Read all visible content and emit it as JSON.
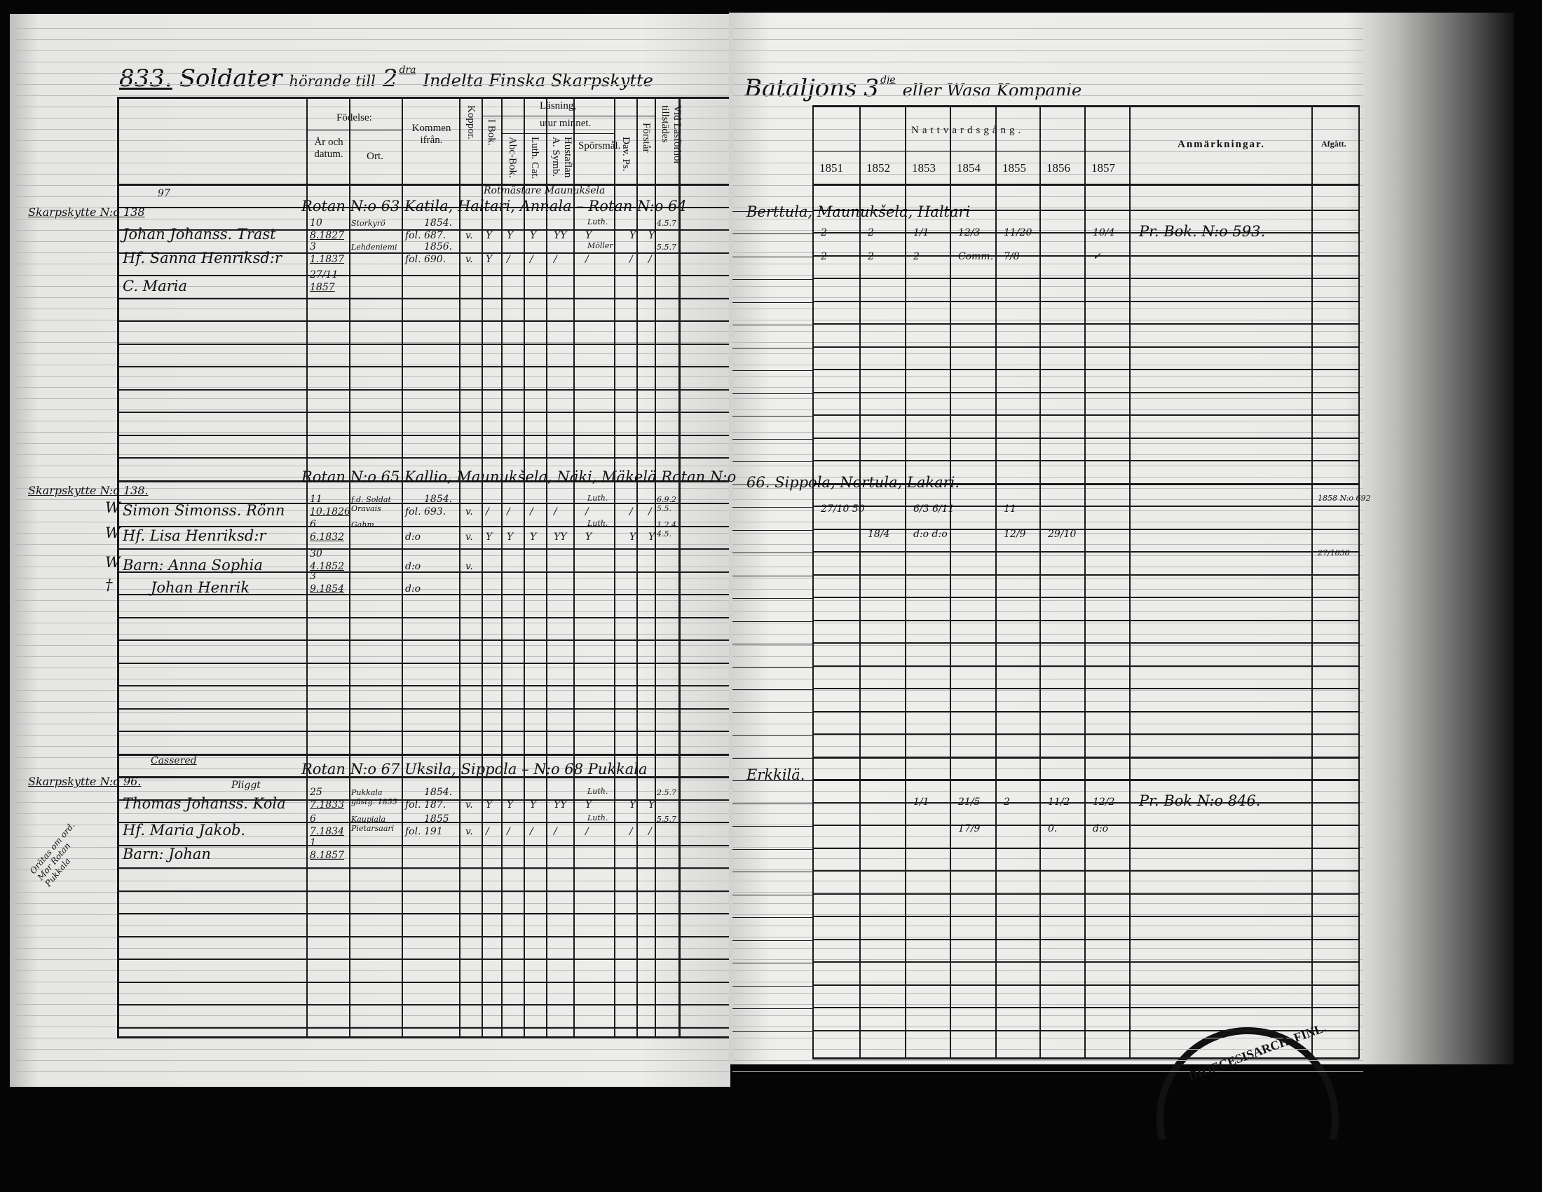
{
  "title": {
    "number": "833.",
    "text1": "Soldater",
    "text2": "hörande till",
    "ordinal": "2",
    "ordinal_sup": "dra",
    "text3": "Indelta Finska Skarpskytte",
    "text4": "Bataljons",
    "ordinal2": "3",
    "ordinal2_sup": "dje",
    "text5": "eller Wasa Kompanie"
  },
  "headers": {
    "fodelse": "Födelse:",
    "ar": "År och datum.",
    "ort": "Ort.",
    "kommen": "Kommen ifrån.",
    "koppor": "Koppor.",
    "lasning": "Läsning,",
    "utur": "utur minnet.",
    "ibok": "I Bok.",
    "abc": "Abc-Bok.",
    "luth": "Luth. Cat.",
    "hust": "Hustaflan A. Symb.",
    "spors": "Spörsmål.",
    "dav": "Dav. Ps.",
    "forstar": "Förstår",
    "lasforhor": "Vid Läsförhör tillstädes",
    "nattvard": "Nattvardsgång.",
    "years": [
      "1851",
      "1852",
      "1853",
      "1854",
      "1855",
      "1856",
      "1857"
    ],
    "anm": "Anmärkningar.",
    "afgatt": "Afgått."
  },
  "entries": [
    {
      "rotmaster": "Rotmästare Maunukšela",
      "no_above": "97",
      "record": "Skarpskytte N:o 138",
      "rotan": "Rotan N:o 63 Katila, Haltari, Annala – Rotan N:o 64",
      "rotan_right": "Berttula, Maunukšela, Haltari",
      "members": [
        {
          "name": "Johan Johanss. Trast",
          "day": "10",
          "date": "8.1827",
          "ort": "Storkyrö",
          "from1": "1854.",
          "from2": "fol. 687.",
          "koppor": "v.",
          "marks": [
            "Y",
            "Y",
            "Y",
            "YY",
            "Y",
            "Y",
            "Y"
          ],
          "spors_note": "Luth.",
          "lasf": "4.5.7",
          "natt": [
            "2",
            "2",
            "1/1",
            "12/3",
            "11/20",
            "",
            "10/4"
          ],
          "anm": "Pr. Bok. N:o 593."
        },
        {
          "name": "Hf. Sanna Henriksd:r",
          "day": "3",
          "date": "1.1837",
          "ort": "Lehdeniemi",
          "from1": "1856.",
          "from2": "fol. 690.",
          "koppor": "v.",
          "marks": [
            "Y",
            "/",
            "/",
            "/",
            "/",
            "/",
            "/"
          ],
          "spors_note": "Möller",
          "lasf": "5.5.7",
          "natt": [
            "2",
            "2",
            "2",
            "Comm.",
            "7/8",
            "",
            "✓"
          ]
        },
        {
          "name": "C. Maria",
          "day": "27/11",
          "date": "1857"
        }
      ]
    },
    {
      "record": "Skarpskytte N:o 138.",
      "rotan": "Rotan N:o 65 Kallio, Maunukšela, Näki, Mäkelä Rotan N:o",
      "rotan_right": "66. Sippola, Nortula, Lakari.",
      "members": [
        {
          "mark": "W",
          "name": "Simon Simonss. Rönn",
          "day": "11",
          "date": "10.1826",
          "ort": "f.d. Soldat Oravais",
          "from1": "1854.",
          "from2": "fol. 693.",
          "koppor": "v.",
          "marks": [
            "/",
            "/",
            "/",
            "/",
            "/",
            "/",
            "/"
          ],
          "spors_note": "Luth.",
          "lasf": "6.9.2 5.5.",
          "natt": [
            "27/10 50",
            "",
            "6/3 6/11",
            "",
            "11",
            "",
            ""
          ],
          "afgatt": "1858 N:o 692"
        },
        {
          "mark": "W",
          "name": "Hf. Lisa Henriksd:r",
          "day": "6",
          "date": "6.1832",
          "ort": "Gahm.",
          "from2": "d:o",
          "koppor": "v.",
          "marks": [
            "Y",
            "Y",
            "Y",
            "YY",
            "Y",
            "Y",
            "Y"
          ],
          "spors_note": "Luth.",
          "lasf": "1.2.4. 4.5.",
          "natt": [
            "",
            "18/4",
            "d:o d:o",
            "",
            "12/9",
            "29/10",
            ""
          ]
        },
        {
          "mark": "W",
          "name": "Barn: Anna Sophia",
          "day": "30",
          "date": "4.1852",
          "from2": "d:o",
          "koppor": "v.",
          "afgatt": "27/1858"
        },
        {
          "mark": "†",
          "name": "Johan Henrik",
          "day": "3",
          "date": "9.1854",
          "from2": "d:o"
        }
      ]
    },
    {
      "cassered": "Cassered",
      "record": "Skarpskytte N:o 96.",
      "rotan": "Rotan N:o 67 Uksila, Sippola – N:o 68 Pukkala",
      "rotan_right": "Erkkilä.",
      "side_note": "Orätas om ord. Mor Rotan Pukkala",
      "members": [
        {
          "name": "Thomas Johanss. Kola",
          "alias": "Pliggt",
          "day": "25",
          "date": "7.1833",
          "ort": "Pukkala gästg. 1855",
          "from1": "1854.",
          "from2": "fol. 187.",
          "koppor": "v.",
          "marks": [
            "Y",
            "Y",
            "Y",
            "YY",
            "Y",
            "Y",
            "Y"
          ],
          "spors_note": "Luth.",
          "lasf": "2.5.7",
          "natt": [
            "",
            "",
            "1/1",
            "21/5",
            "2",
            "11/2",
            "12/2"
          ],
          "anm": "Pr. Bok N:o 846."
        },
        {
          "name": "Hf. Maria Jakob.",
          "day": "6",
          "date": "7.1834",
          "ort": "Kaupiala Pietarsaari",
          "from1": "1855",
          "from2": "fol. 191",
          "koppor": "v.",
          "marks": [
            "/",
            "/",
            "/",
            "/",
            "/",
            "/",
            "/"
          ],
          "spors_note": "Luth.",
          "lasf": "5.5.7",
          "natt": [
            "",
            "",
            "",
            "17/9",
            "",
            "0.",
            "d:o"
          ]
        },
        {
          "name": "Barn: Johan",
          "day": "1",
          "date": "8.1857"
        }
      ]
    }
  ],
  "stamp": {
    "text": "DIOECESISARCH. FINL."
  }
}
